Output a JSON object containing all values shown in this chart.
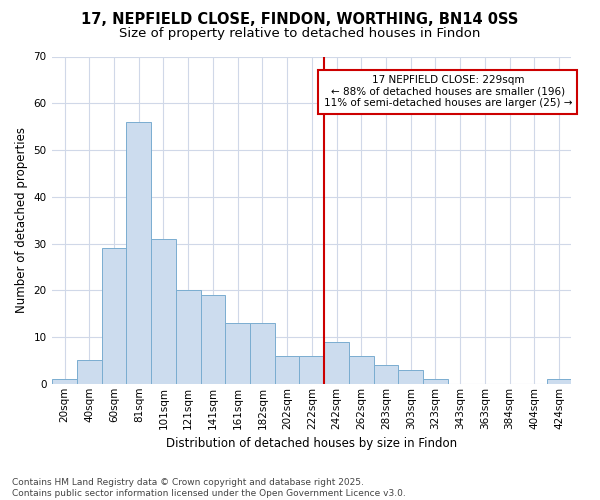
{
  "title_line1": "17, NEPFIELD CLOSE, FINDON, WORTHING, BN14 0SS",
  "title_line2": "Size of property relative to detached houses in Findon",
  "xlabel": "Distribution of detached houses by size in Findon",
  "ylabel": "Number of detached properties",
  "bin_labels": [
    "20sqm",
    "40sqm",
    "60sqm",
    "81sqm",
    "101sqm",
    "121sqm",
    "141sqm",
    "161sqm",
    "182sqm",
    "202sqm",
    "222sqm",
    "242sqm",
    "262sqm",
    "283sqm",
    "303sqm",
    "323sqm",
    "343sqm",
    "363sqm",
    "384sqm",
    "404sqm",
    "424sqm"
  ],
  "bar_values": [
    1,
    5,
    29,
    56,
    31,
    20,
    19,
    13,
    13,
    6,
    6,
    9,
    6,
    4,
    3,
    1,
    0,
    0,
    0,
    0,
    1
  ],
  "bar_color": "#ccdcee",
  "bar_edge_color": "#7aadd0",
  "vline_color": "#cc0000",
  "vline_x": 10.5,
  "annotation_text": "17 NEPFIELD CLOSE: 229sqm\n← 88% of detached houses are smaller (196)\n11% of semi-detached houses are larger (25) →",
  "annotation_box_color": "#ffffff",
  "annotation_box_edge": "#cc0000",
  "ylim": [
    0,
    70
  ],
  "yticks": [
    0,
    10,
    20,
    30,
    40,
    50,
    60,
    70
  ],
  "background_color": "#ffffff",
  "grid_color": "#d0d8e8",
  "footer_text": "Contains HM Land Registry data © Crown copyright and database right 2025.\nContains public sector information licensed under the Open Government Licence v3.0.",
  "title_fontsize": 10.5,
  "subtitle_fontsize": 9.5,
  "axis_label_fontsize": 8.5,
  "tick_fontsize": 7.5,
  "annotation_fontsize": 7.5,
  "footer_fontsize": 6.5
}
